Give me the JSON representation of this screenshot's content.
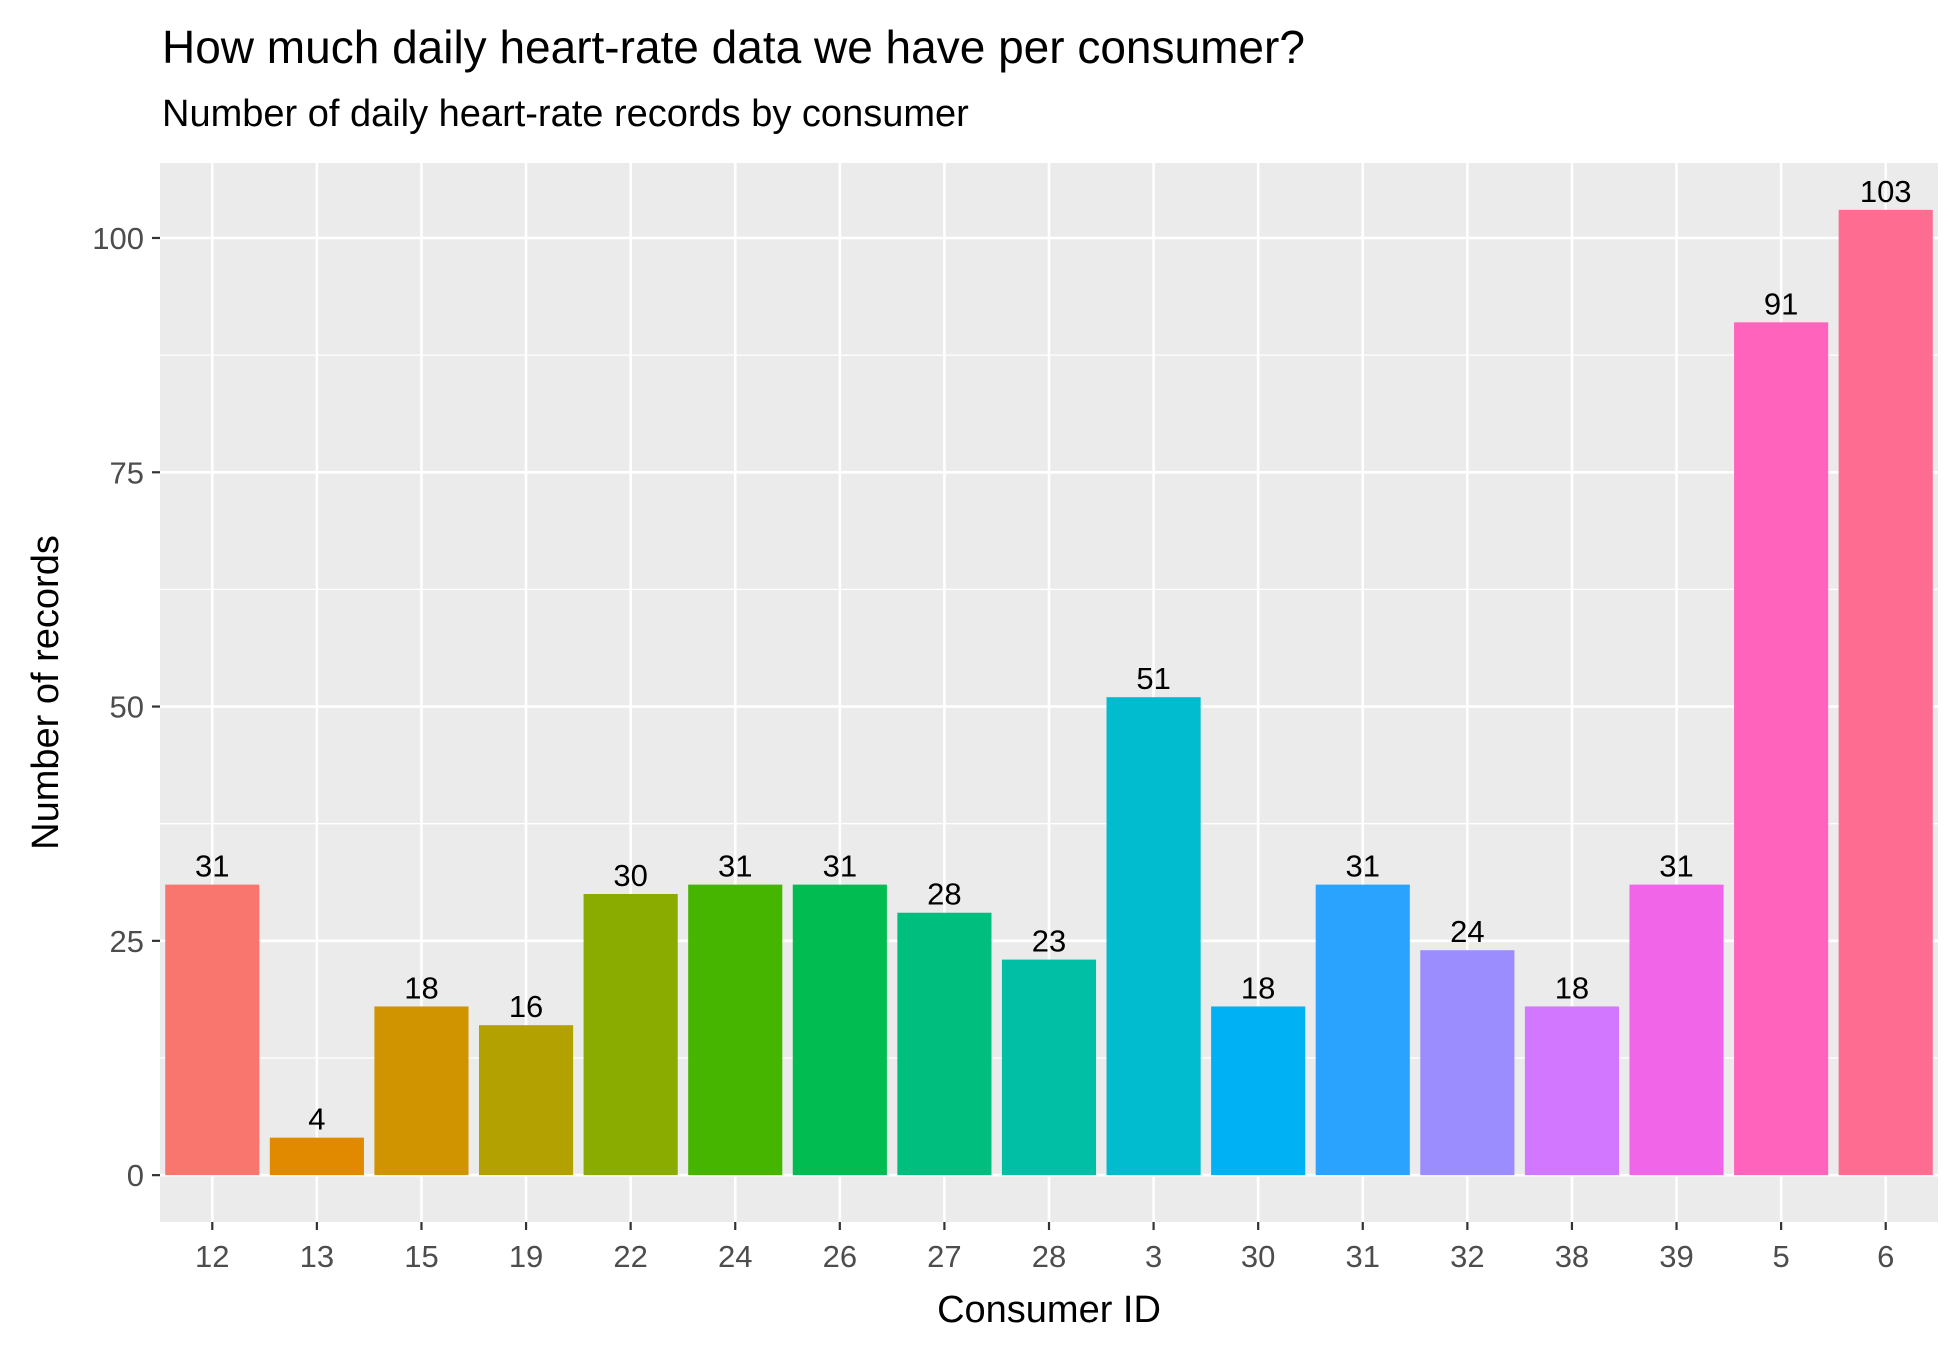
{
  "chart_data": {
    "type": "bar",
    "title": "How much daily heart-rate data we have per consumer?",
    "subtitle": "Number of daily heart-rate records by consumer",
    "xlabel": "Consumer ID",
    "ylabel": "Number of records",
    "categories": [
      "12",
      "13",
      "15",
      "19",
      "22",
      "24",
      "26",
      "27",
      "28",
      "3",
      "30",
      "31",
      "32",
      "38",
      "39",
      "5",
      "6"
    ],
    "values": [
      31,
      4,
      18,
      16,
      30,
      31,
      31,
      28,
      23,
      51,
      18,
      31,
      24,
      18,
      31,
      91,
      103
    ],
    "value_labels": [
      "31",
      "4",
      "18",
      "16",
      "30",
      "31",
      "31",
      "28",
      "23",
      "51",
      "18",
      "31",
      "24",
      "18",
      "31",
      "91",
      "103"
    ],
    "colors": [
      "#F8766D",
      "#E58700",
      "#C99800",
      "#A3A500",
      "#6BB100",
      "#00BA38",
      "#00BF7D",
      "#00C0AF",
      "#00BCD8",
      "#00B0F6",
      "#619CFF",
      "#B983FF",
      "#E76BF3",
      "#FD61D1",
      "#FF67A4",
      "#F8766D",
      "#E58700"
    ],
    "ylim": [
      -5,
      108
    ],
    "yticks": [
      0,
      25,
      50,
      75,
      100
    ],
    "ytick_labels": [
      "0",
      "25",
      "50",
      "75",
      "100"
    ],
    "grid": true,
    "legend": "none",
    "panel_background": "#EBEBEB",
    "grid_color": "#FFFFFF"
  }
}
